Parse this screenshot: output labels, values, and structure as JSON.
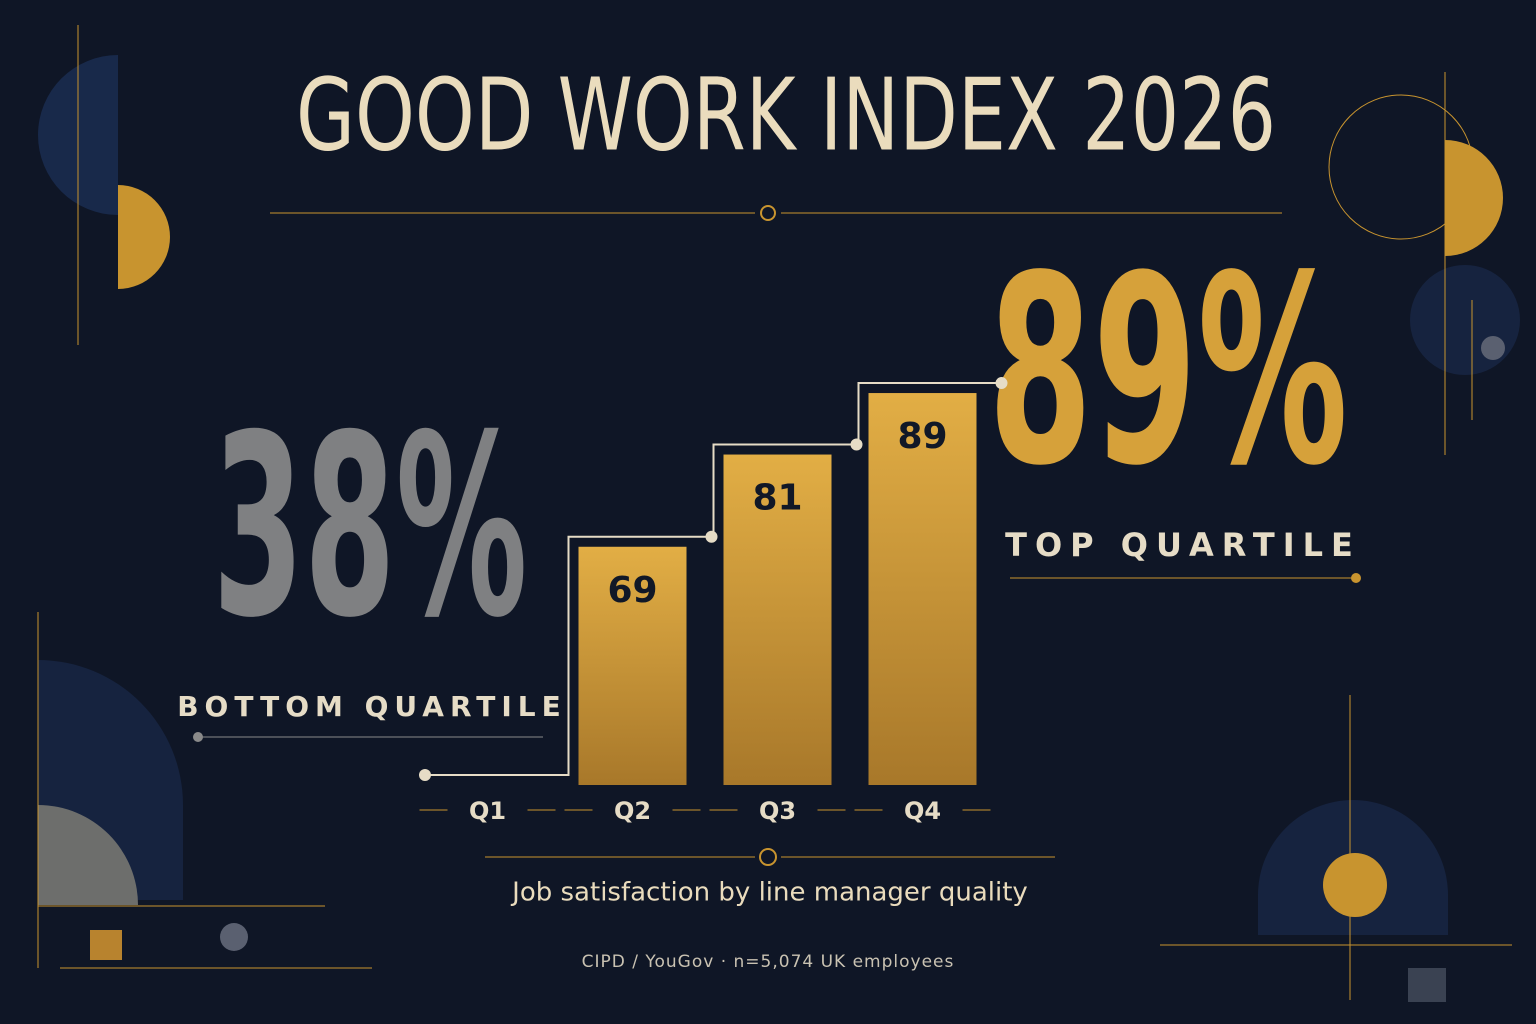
{
  "chart_data": {
    "type": "bar",
    "title": "GOOD WORK INDEX 2026",
    "subtitle": "Job satisfaction by line manager quality",
    "source": "CIPD / YouGov · n=5,074 UK employees",
    "bottom_callout": {
      "value": "38%",
      "label": "BOTTOM QUARTILE"
    },
    "top_callout": {
      "value": "89%",
      "label": "TOP QUARTILE"
    },
    "categories": [
      "Q1",
      "Q2",
      "Q3",
      "Q4"
    ],
    "values": [
      38,
      69,
      81,
      89
    ],
    "color": "#d6a13a",
    "ylim": [
      38,
      92
    ]
  }
}
